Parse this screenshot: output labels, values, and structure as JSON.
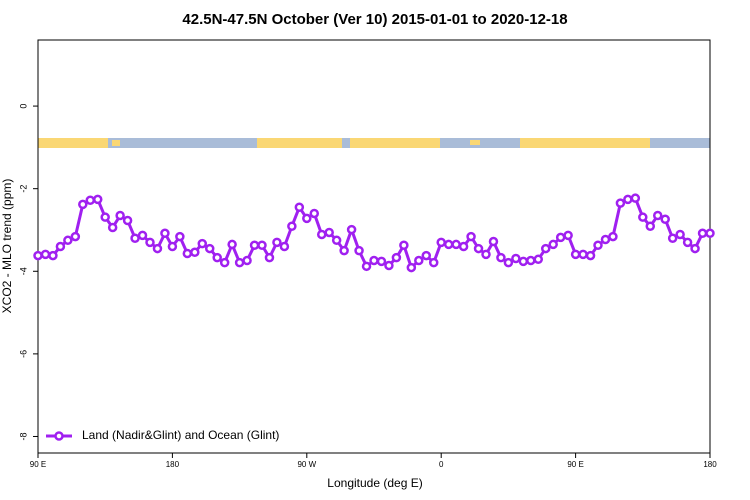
{
  "chart_data": {
    "type": "line",
    "title": "42.5N-47.5N October (Ver 10)   2015-01-01 to 2020-12-18",
    "x_label": "Longitude (deg E)",
    "y_label": "XCO2 - MLO trend (ppm)",
    "x": [
      90,
      95,
      100,
      105,
      110,
      115,
      120,
      125,
      130,
      135,
      140,
      145,
      150,
      155,
      160,
      165,
      170,
      175,
      180,
      185,
      190,
      195,
      200,
      205,
      210,
      215,
      220,
      225,
      230,
      235,
      240,
      245,
      250,
      255,
      260,
      265,
      270,
      275,
      280,
      285,
      290,
      295,
      300,
      305,
      310,
      315,
      320,
      325,
      330,
      335,
      340,
      345,
      350,
      355,
      360,
      365,
      370,
      375,
      380,
      385,
      390,
      395,
      400,
      405,
      410,
      415,
      420,
      425,
      430,
      435,
      440,
      445,
      450,
      455,
      460,
      465,
      470,
      475,
      480,
      485,
      490,
      495,
      500,
      505,
      510,
      515,
      520,
      525,
      530,
      535,
      540
    ],
    "series": [
      {
        "name": "Land (Nadir&Glint) and Ocean (Glint)",
        "color": "#a020f0",
        "values": [
          -3.62,
          -3.59,
          -3.62,
          -3.4,
          -3.25,
          -3.16,
          -2.38,
          -2.28,
          -2.26,
          -2.69,
          -2.94,
          -2.65,
          -2.77,
          -3.2,
          -3.13,
          -3.3,
          -3.45,
          -3.08,
          -3.4,
          -3.16,
          -3.57,
          -3.54,
          -3.33,
          -3.45,
          -3.67,
          -3.79,
          -3.35,
          -3.79,
          -3.74,
          -3.37,
          -3.37,
          -3.67,
          -3.3,
          -3.4,
          -2.91,
          -2.45,
          -2.72,
          -2.6,
          -3.11,
          -3.06,
          -3.25,
          -3.5,
          -2.99,
          -3.5,
          -3.88,
          -3.74,
          -3.76,
          -3.86,
          -3.67,
          -3.37,
          -3.91,
          -3.74,
          -3.62,
          -3.79,
          -3.3,
          -3.35,
          -3.35,
          -3.4,
          -3.16,
          -3.45,
          -3.59,
          -3.28,
          -3.67,
          -3.79,
          -3.69,
          -3.76,
          -3.74,
          -3.71,
          -3.45,
          -3.35,
          -3.18,
          -3.13,
          -3.59,
          -3.59,
          -3.62,
          -3.37,
          -3.23,
          -3.16,
          -2.35,
          -2.26,
          -2.23,
          -2.69,
          -2.91,
          -2.65,
          -2.74,
          -3.2,
          -3.11,
          -3.3,
          -3.45,
          -3.08,
          -3.08
        ]
      }
    ],
    "xlim": [
      90,
      540
    ],
    "xticks": [
      {
        "value": 90,
        "label": "90 E"
      },
      {
        "value": 180,
        "label": "180"
      },
      {
        "value": 270,
        "label": "90 W"
      },
      {
        "value": 360,
        "label": "0"
      },
      {
        "value": 450,
        "label": "90 E"
      },
      {
        "value": 540,
        "label": "180"
      }
    ],
    "ylim": [
      -8.4,
      1.6
    ],
    "yticks": [
      0,
      -2,
      -4,
      -6,
      -8
    ],
    "legend": "bottom-left"
  }
}
